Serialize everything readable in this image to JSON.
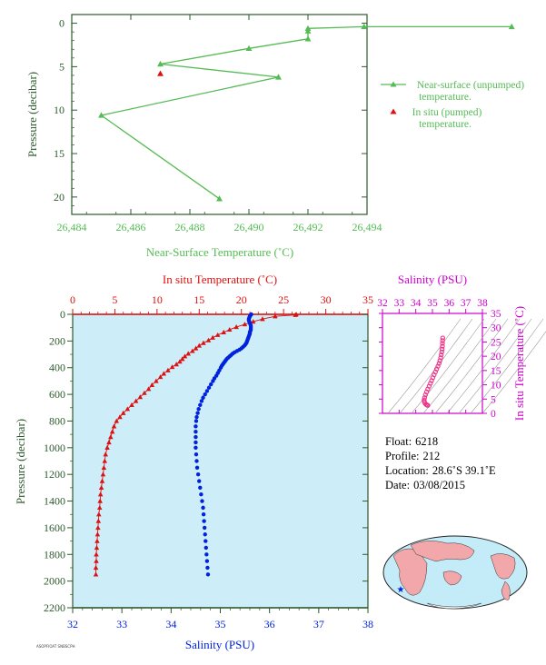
{
  "colors": {
    "green": "#55bb55",
    "red": "#dd1111",
    "blue": "#0022dd",
    "magenta": "#cc00cc",
    "pink": "#ee3388",
    "plot_bg": "#cdeef8",
    "axis_green": "#2d5a2d"
  },
  "chart_data": [
    {
      "type": "line",
      "xlabel": "Near-Surface Temperature (˚C)",
      "ylabel": "Pressure (decibar)",
      "xlim": [
        26.484,
        26.494
      ],
      "ylim": [
        22,
        -1
      ],
      "xticks": [
        "26,484",
        "26,486",
        "26,488",
        "26,490",
        "26,492",
        "26,494"
      ],
      "yticks": [
        "0",
        "5",
        "10",
        "15",
        "20"
      ],
      "legend": [
        {
          "label_lines": [
            "Near-surface (unpumped)",
            "temperature."
          ]
        },
        {
          "label_lines": [
            "In situ (pumped)",
            "temperature."
          ]
        }
      ],
      "legend_position": "right",
      "series": [
        {
          "name": "Near-surface (unpumped) temperature.",
          "points": [
            [
              26.4989,
              0.4
            ],
            [
              26.4939,
              0.4
            ],
            [
              26.492,
              0.6
            ],
            [
              26.492,
              0.9
            ],
            [
              26.492,
              1.8
            ],
            [
              26.49,
              2.9
            ],
            [
              26.487,
              4.7
            ],
            [
              26.491,
              6.2
            ],
            [
              26.485,
              10.6
            ],
            [
              26.489,
              20.2
            ]
          ]
        },
        {
          "name": "In situ (pumped) temperature.",
          "points": [
            [
              26.487,
              5.8
            ]
          ]
        }
      ]
    },
    {
      "type": "scatter",
      "ylabel": "Pressure (decibar)",
      "top_xlabel": "In situ Temperature (˚C)",
      "bottom_xlabel": "Salinity (PSU)",
      "temperature_range": [
        0,
        35
      ],
      "salinity_range": [
        32,
        38
      ],
      "ylim": [
        2200,
        0
      ],
      "temperature_ticks": [
        "0",
        "5",
        "10",
        "15",
        "20",
        "25",
        "30",
        "35"
      ],
      "salinity_ticks": [
        "32",
        "33",
        "34",
        "35",
        "36",
        "37",
        "38"
      ],
      "pressure_ticks": [
        "0",
        "200",
        "400",
        "600",
        "800",
        "1000",
        "1200",
        "1400",
        "1600",
        "1800",
        "2000",
        "2200"
      ],
      "temperature_profile": [
        [
          26.5,
          0
        ],
        [
          26.4,
          5
        ],
        [
          24,
          15
        ],
        [
          22.5,
          35
        ],
        [
          21.4,
          55
        ],
        [
          20.4,
          75
        ],
        [
          19.4,
          95
        ],
        [
          18.6,
          115
        ],
        [
          17.9,
          135
        ],
        [
          17.2,
          155
        ],
        [
          16.6,
          175
        ],
        [
          16.1,
          195
        ],
        [
          15.5,
          215
        ],
        [
          15.0,
          235
        ],
        [
          14.6,
          255
        ],
        [
          14.2,
          275
        ],
        [
          13.7,
          295
        ],
        [
          13.3,
          315
        ],
        [
          13.0,
          335
        ],
        [
          12.7,
          355
        ],
        [
          12.3,
          375
        ],
        [
          11.8,
          395
        ],
        [
          11.3,
          420
        ],
        [
          10.8,
          445
        ],
        [
          10.4,
          470
        ],
        [
          9.9,
          500
        ],
        [
          9.4,
          530
        ],
        [
          9.0,
          560
        ],
        [
          8.5,
          590
        ],
        [
          8.0,
          620
        ],
        [
          7.5,
          650
        ],
        [
          7.0,
          680
        ],
        [
          6.5,
          710
        ],
        [
          6.0,
          740
        ],
        [
          5.6,
          770
        ],
        [
          5.2,
          800
        ],
        [
          4.9,
          840
        ],
        [
          4.7,
          880
        ],
        [
          4.5,
          920
        ],
        [
          4.3,
          960
        ],
        [
          4.1,
          1000
        ],
        [
          3.9,
          1050
        ],
        [
          3.8,
          1100
        ],
        [
          3.7,
          1150
        ],
        [
          3.6,
          1200
        ],
        [
          3.5,
          1250
        ],
        [
          3.4,
          1300
        ],
        [
          3.3,
          1350
        ],
        [
          3.25,
          1400
        ],
        [
          3.2,
          1450
        ],
        [
          3.1,
          1500
        ],
        [
          3.05,
          1550
        ],
        [
          3.0,
          1600
        ],
        [
          2.95,
          1650
        ],
        [
          2.9,
          1700
        ],
        [
          2.85,
          1750
        ],
        [
          2.8,
          1800
        ],
        [
          2.8,
          1850
        ],
        [
          2.75,
          1900
        ],
        [
          2.75,
          1950
        ]
      ],
      "salinity_profile": [
        [
          35.63,
          0
        ],
        [
          35.62,
          5
        ],
        [
          35.6,
          15
        ],
        [
          35.59,
          25
        ],
        [
          35.58,
          35
        ],
        [
          35.58,
          45
        ],
        [
          35.59,
          55
        ],
        [
          35.6,
          65
        ],
        [
          35.61,
          75
        ],
        [
          35.62,
          85
        ],
        [
          35.62,
          95
        ],
        [
          35.62,
          105
        ],
        [
          35.62,
          115
        ],
        [
          35.61,
          125
        ],
        [
          35.6,
          135
        ],
        [
          35.6,
          145
        ],
        [
          35.59,
          155
        ],
        [
          35.58,
          165
        ],
        [
          35.57,
          175
        ],
        [
          35.56,
          185
        ],
        [
          35.55,
          195
        ],
        [
          35.54,
          205
        ],
        [
          35.53,
          215
        ],
        [
          35.51,
          225
        ],
        [
          35.49,
          235
        ],
        [
          35.46,
          245
        ],
        [
          35.43,
          255
        ],
        [
          35.39,
          265
        ],
        [
          35.34,
          275
        ],
        [
          35.29,
          285
        ],
        [
          35.25,
          295
        ],
        [
          35.22,
          305
        ],
        [
          35.19,
          315
        ],
        [
          35.16,
          325
        ],
        [
          35.13,
          335
        ],
        [
          35.11,
          345
        ],
        [
          35.09,
          355
        ],
        [
          35.07,
          365
        ],
        [
          35.05,
          375
        ],
        [
          35.03,
          385
        ],
        [
          35.01,
          400
        ],
        [
          34.98,
          420
        ],
        [
          34.95,
          440
        ],
        [
          34.92,
          460
        ],
        [
          34.88,
          480
        ],
        [
          34.85,
          500
        ],
        [
          34.81,
          525
        ],
        [
          34.77,
          550
        ],
        [
          34.73,
          575
        ],
        [
          34.69,
          600
        ],
        [
          34.65,
          625
        ],
        [
          34.62,
          650
        ],
        [
          34.59,
          680
        ],
        [
          34.56,
          710
        ],
        [
          34.54,
          740
        ],
        [
          34.52,
          770
        ],
        [
          34.51,
          800
        ],
        [
          34.5,
          840
        ],
        [
          34.5,
          880
        ],
        [
          34.5,
          920
        ],
        [
          34.5,
          960
        ],
        [
          34.5,
          1000
        ],
        [
          34.51,
          1050
        ],
        [
          34.52,
          1100
        ],
        [
          34.53,
          1150
        ],
        [
          34.55,
          1200
        ],
        [
          34.57,
          1250
        ],
        [
          34.59,
          1300
        ],
        [
          34.61,
          1350
        ],
        [
          34.63,
          1400
        ],
        [
          34.65,
          1450
        ],
        [
          34.66,
          1500
        ],
        [
          34.67,
          1550
        ],
        [
          34.68,
          1600
        ],
        [
          34.69,
          1650
        ],
        [
          34.7,
          1700
        ],
        [
          34.71,
          1750
        ],
        [
          34.72,
          1800
        ],
        [
          34.73,
          1850
        ],
        [
          34.74,
          1900
        ],
        [
          34.75,
          1950
        ]
      ]
    },
    {
      "type": "scatter",
      "title": "Salinity (PSU)",
      "ylabel": "In situ Temperature (˚C)",
      "xlim": [
        32,
        38
      ],
      "ylim": [
        0,
        35
      ],
      "xticks": [
        "32",
        "33",
        "34",
        "35",
        "36",
        "37",
        "38"
      ],
      "yticks": [
        "0",
        "5",
        "10",
        "15",
        "20",
        "25",
        "30",
        "35"
      ],
      "points": [
        [
          35.62,
          26.4
        ],
        [
          35.61,
          25.5
        ],
        [
          35.6,
          24.5
        ],
        [
          35.6,
          23.5
        ],
        [
          35.58,
          22.5
        ],
        [
          35.56,
          21.5
        ],
        [
          35.53,
          20.5
        ],
        [
          35.5,
          19.5
        ],
        [
          35.45,
          18.5
        ],
        [
          35.4,
          17.5
        ],
        [
          35.33,
          16.5
        ],
        [
          35.25,
          15.5
        ],
        [
          35.18,
          14.5
        ],
        [
          35.1,
          13.5
        ],
        [
          35.02,
          12.5
        ],
        [
          34.95,
          11.5
        ],
        [
          34.88,
          10.5
        ],
        [
          34.8,
          9.5
        ],
        [
          34.72,
          8.5
        ],
        [
          34.65,
          7.5
        ],
        [
          34.58,
          6.5
        ],
        [
          34.53,
          5.5
        ],
        [
          34.5,
          4.7
        ],
        [
          34.52,
          4.0
        ],
        [
          34.56,
          3.5
        ],
        [
          34.62,
          3.1
        ],
        [
          34.68,
          2.9
        ],
        [
          34.72,
          2.8
        ]
      ]
    }
  ],
  "info": {
    "float_label": "Float:",
    "float_value": "6218",
    "profile_label": "Profile:",
    "profile_value": "212",
    "location_label": "Location:",
    "location_value": "28.6˚S  39.1˚E",
    "date_label": "Date:",
    "date_value": "03/08/2015"
  },
  "map_icon": "world-map-icon",
  "footer_text": "ASOPFIOAT SNBSCPH"
}
